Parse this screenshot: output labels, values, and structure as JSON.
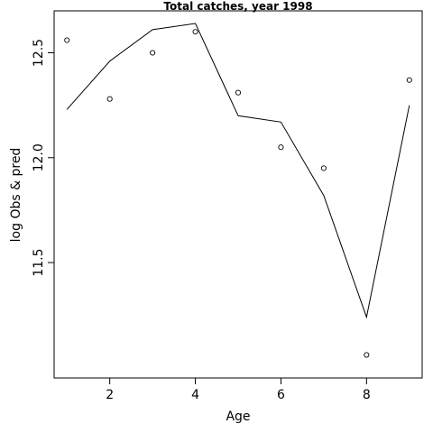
{
  "chart_data": {
    "type": "line",
    "title": "Total catches, year 1998",
    "xlabel": "Age",
    "ylabel": "log Obs & pred",
    "xlim": [
      0.7,
      9.3
    ],
    "ylim": [
      10.95,
      12.7
    ],
    "x_ticks": [
      2,
      4,
      6,
      8
    ],
    "y_ticks": [
      11.5,
      12.0,
      12.5
    ],
    "grid": false,
    "legend": "none",
    "series": [
      {
        "kind": "points",
        "x": [
          1,
          2,
          3,
          4,
          5,
          6,
          7,
          8,
          9
        ],
        "y": [
          12.56,
          12.28,
          12.5,
          12.6,
          12.31,
          12.05,
          11.95,
          11.06,
          12.37
        ]
      },
      {
        "kind": "line",
        "x": [
          1,
          2,
          3,
          4,
          5,
          6,
          7,
          8,
          9
        ],
        "y": [
          12.23,
          12.46,
          12.61,
          12.64,
          12.2,
          12.17,
          11.82,
          11.24,
          12.25
        ]
      }
    ]
  }
}
